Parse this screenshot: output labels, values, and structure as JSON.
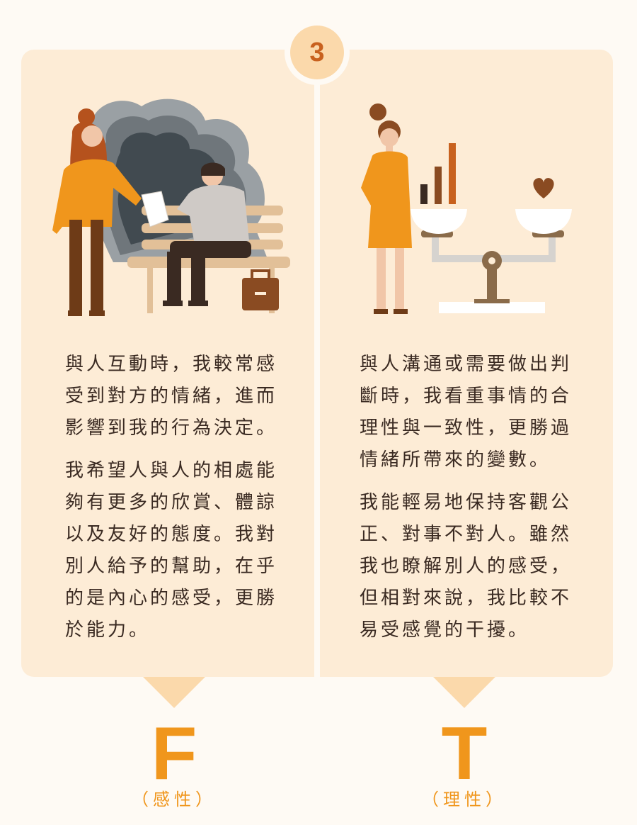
{
  "step_number": "3",
  "left": {
    "paragraphs": [
      "與人互動時，我較常感受到對方的情緒，進而影響到我的行為決定。",
      "我希望人與人的相處能夠有更多的欣賞、體諒以及友好的態度。我對別人給予的幫助，在乎的是內心的感受，更勝於能力。"
    ],
    "letter": "F",
    "label": "（感性）"
  },
  "right": {
    "paragraphs": [
      "與人溝通或需要做出判斷時，我看重事情的合理性與一致性，更勝過情緒所帶來的變數。",
      "我能輕易地保持客觀公正、對事不對人。雖然我也瞭解別人的感受，但相對來說，我比較不易受感覺的干擾。"
    ],
    "letter": "T",
    "label": "（理性）"
  },
  "colors": {
    "panel": "#fdecd6",
    "accent": "#f0961c",
    "badge": "#fbd9ab",
    "text": "#3a2a22"
  }
}
